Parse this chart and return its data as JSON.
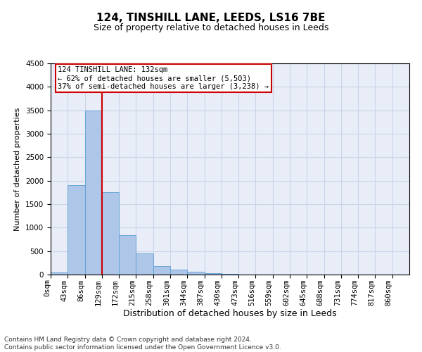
{
  "title_line1": "124, TINSHILL LANE, LEEDS, LS16 7BE",
  "title_line2": "Size of property relative to detached houses in Leeds",
  "xlabel": "Distribution of detached houses by size in Leeds",
  "ylabel": "Number of detached properties",
  "bar_labels": [
    "0sqm",
    "43sqm",
    "86sqm",
    "129sqm",
    "172sqm",
    "215sqm",
    "258sqm",
    "301sqm",
    "344sqm",
    "387sqm",
    "430sqm",
    "473sqm",
    "516sqm",
    "559sqm",
    "602sqm",
    "645sqm",
    "688sqm",
    "731sqm",
    "774sqm",
    "817sqm",
    "860sqm"
  ],
  "bar_values": [
    40,
    1900,
    3500,
    1750,
    840,
    450,
    175,
    100,
    60,
    30,
    15,
    5,
    0,
    0,
    0,
    0,
    0,
    0,
    0,
    0,
    0
  ],
  "bar_color": "#aec6e8",
  "bar_edgecolor": "#5a9fd4",
  "vline_x_idx": 3,
  "vline_color": "#cc0000",
  "annotation_text": "124 TINSHILL LANE: 132sqm\n← 62% of detached houses are smaller (5,503)\n37% of semi-detached houses are larger (3,238) →",
  "annotation_box_color": "#ffffff",
  "annotation_box_edgecolor": "#cc0000",
  "ylim": [
    0,
    4500
  ],
  "yticks": [
    0,
    500,
    1000,
    1500,
    2000,
    2500,
    3000,
    3500,
    4000,
    4500
  ],
  "grid_color": "#ccd4e8",
  "bg_color": "#e8edf8",
  "footer_text": "Contains HM Land Registry data © Crown copyright and database right 2024.\nContains public sector information licensed under the Open Government Licence v3.0.",
  "title_fontsize": 11,
  "subtitle_fontsize": 9,
  "xlabel_fontsize": 9,
  "ylabel_fontsize": 8,
  "tick_fontsize": 7.5,
  "annot_fontsize": 7.5,
  "footer_fontsize": 6.5
}
